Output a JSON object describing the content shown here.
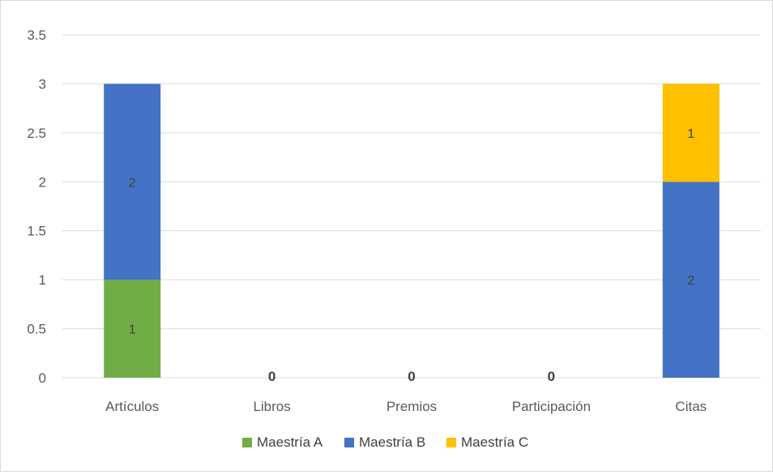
{
  "chart_data": {
    "type": "bar",
    "stacked": true,
    "categories": [
      "Artículos",
      "Libros",
      "Premios",
      "Participación",
      "Citas"
    ],
    "series": [
      {
        "name": "Maestría A",
        "color": "#70ad47",
        "values": [
          1,
          0,
          0,
          0,
          0
        ]
      },
      {
        "name": "Maestría B",
        "color": "#4472c4",
        "values": [
          2,
          0,
          0,
          0,
          2
        ]
      },
      {
        "name": "Maestría C",
        "color": "#ffc000",
        "values": [
          0,
          0,
          0,
          0,
          1
        ]
      }
    ],
    "ylim": [
      0,
      3.5
    ],
    "yticks": [
      "0",
      "0.5",
      "1",
      "1.5",
      "2",
      "2.5",
      "3",
      "3.5"
    ],
    "zero_total_label": "0",
    "grid": true,
    "legend_position": "bottom"
  }
}
